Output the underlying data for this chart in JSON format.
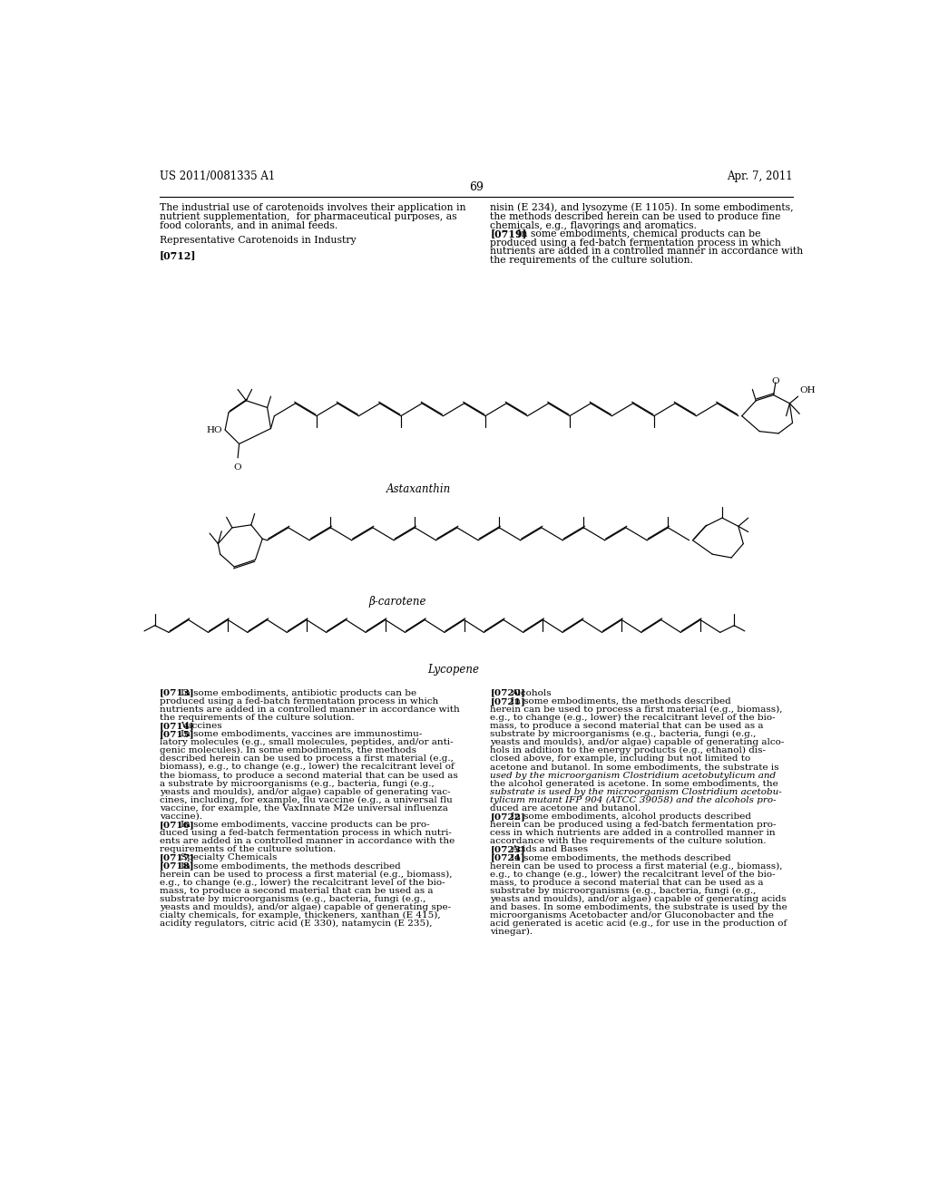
{
  "bg_color": "#ffffff",
  "header_left": "US 2011/0081335 A1",
  "header_right": "Apr. 7, 2011",
  "page_number": "69",
  "left_col_text": [
    "The industrial use of carotenoids involves their application in",
    "nutrient supplementation,  for pharmaceutical purposes, as",
    "food colorants, and in animal feeds.",
    "",
    "Representative Carotenoids in Industry",
    "",
    "[0712]"
  ],
  "right_col_text_top": [
    "nisin (E 234), and lysozyme (E 1105). In some embodiments,",
    "the methods described herein can be used to produce fine",
    "chemicals, e.g., flavorings and aromatics.",
    "[0719]    In some embodiments, chemical products can be",
    "produced using a fed-batch fermentation process in which",
    "nutrients are added in a controlled manner in accordance with",
    "the requirements of the culture solution."
  ],
  "label_astaxanthin": "Astaxanthin",
  "label_beta_carotene": "β-carotene",
  "label_lycopene": "Lycopene",
  "left_col_body": [
    "[0713]    In some embodiments, antibiotic products can be",
    "produced using a fed-batch fermentation process in which",
    "nutrients are added in a controlled manner in accordance with",
    "the requirements of the culture solution.",
    "[0714]    Vaccines",
    "[0715]    In some embodiments, vaccines are immunostimu-",
    "latory molecules (e.g., small molecules, peptides, and/or anti-",
    "genic molecules). In some embodiments, the methods",
    "described herein can be used to process a first material (e.g.,",
    "biomass), e.g., to change (e.g., lower) the recalcitrant level of",
    "the biomass, to produce a second material that can be used as",
    "a substrate by microorganisms (e.g., bacteria, fungi (e.g.,",
    "yeasts and moulds), and/or algae) capable of generating vac-",
    "cines, including, for example, flu vaccine (e.g., a universal flu",
    "vaccine, for example, the VaxInnate M2e universal influenza",
    "vaccine).",
    "[0716]    In some embodiments, vaccine products can be pro-",
    "duced using a fed-batch fermentation process in which nutri-",
    "ents are added in a controlled manner in accordance with the",
    "requirements of the culture solution.",
    "[0717]    Specialty Chemicals",
    "[0718]    In some embodiments, the methods described",
    "herein can be used to process a first material (e.g., biomass),",
    "e.g., to change (e.g., lower) the recalcitrant level of the bio-",
    "mass, to produce a second material that can be used as a",
    "substrate by microorganisms (e.g., bacteria, fungi (e.g.,",
    "yeasts and moulds), and/or algae) capable of generating spe-",
    "cialty chemicals, for example, thickeners, xanthan (E 415),",
    "acidity regulators, citric acid (E 330), natamycin (E 235),"
  ],
  "right_col_body": [
    "[0720]    Alcohols",
    "[0721]    In some embodiments, the methods described",
    "herein can be used to process a first material (e.g., biomass),",
    "e.g., to change (e.g., lower) the recalcitrant level of the bio-",
    "mass, to produce a second material that can be used as a",
    "substrate by microorganisms (e.g., bacteria, fungi (e.g.,",
    "yeasts and moulds), and/or algae) capable of generating alco-",
    "hols in addition to the energy products (e.g., ethanol) dis-",
    "closed above, for example, including but not limited to",
    "acetone and butanol. In some embodiments, the substrate is",
    "used by the microorganism Clostridium acetobutylicum and",
    "the alcohol generated is acetone. In some embodiments, the",
    "substrate is used by the microorganism Clostridium acetobu-",
    "tylicum mutant IFP 904 (ATCC 39058) and the alcohols pro-",
    "duced are acetone and butanol.",
    "[0722]    In some embodiments, alcohol products described",
    "herein can be produced using a fed-batch fermentation pro-",
    "cess in which nutrients are added in a controlled manner in",
    "accordance with the requirements of the culture solution.",
    "[0723]    Acids and Bases",
    "[0724]    In some embodiments, the methods described",
    "herein can be used to process a first material (e.g., biomass),",
    "e.g., to change (e.g., lower) the recalcitrant level of the bio-",
    "mass, to produce a second material that can be used as a",
    "substrate by microorganisms (e.g., bacteria, fungi (e.g.,",
    "yeasts and moulds), and/or algae) capable of generating acids",
    "and bases. In some embodiments, the substrate is used by the",
    "microorganisms Acetobacter and/or Gluconobacter and the",
    "acid generated is acetic acid (e.g., for use in the production of",
    "vinegar)."
  ]
}
